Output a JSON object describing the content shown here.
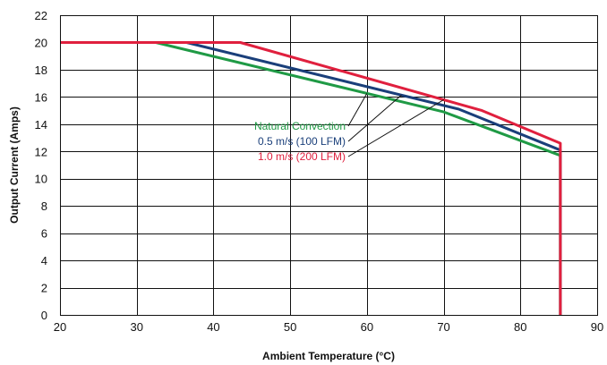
{
  "chart_data": {
    "type": "line",
    "xlabel": "Ambient Temperature (°C)",
    "ylabel": "Output Current (Amps)",
    "xlim": [
      20,
      90
    ],
    "ylim": [
      0,
      22
    ],
    "x_ticks": [
      20,
      30,
      40,
      50,
      60,
      70,
      80,
      90
    ],
    "y_ticks": [
      0,
      2,
      4,
      6,
      8,
      10,
      12,
      14,
      16,
      18,
      20,
      22
    ],
    "grid": true,
    "legend_placement": "center-right, with leader lines",
    "series": [
      {
        "name": "Natural Convection",
        "color": "#1f9a45",
        "x": [
          20,
          32.5,
          70,
          85.2,
          85.2
        ],
        "y": [
          20,
          20,
          14.9,
          11.7,
          0
        ]
      },
      {
        "name": "0.5 m/s (100 LFM)",
        "color": "#1a3f7a",
        "x": [
          20,
          36.5,
          72,
          85.2,
          85.2
        ],
        "y": [
          20,
          20,
          15.1,
          12.1,
          0
        ]
      },
      {
        "name": "1.0 m/s (200 LFM)",
        "color": "#e0203e",
        "x": [
          20,
          43.5,
          75,
          85.2,
          85.2
        ],
        "y": [
          20,
          20,
          15.0,
          12.6,
          0
        ]
      }
    ]
  }
}
